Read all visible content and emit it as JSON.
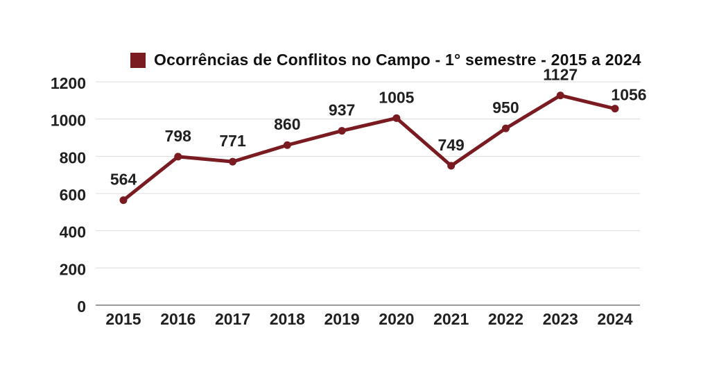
{
  "legend": {
    "label": "Ocorrências de Conflitos no Campo - 1° semestre - 2015 a 2024",
    "swatch_color": "#7a1a21"
  },
  "chart_data": {
    "type": "line",
    "title": "Ocorrências de Conflitos no Campo - 1° semestre - 2015 a 2024",
    "categories": [
      "2015",
      "2016",
      "2017",
      "2018",
      "2019",
      "2020",
      "2021",
      "2022",
      "2023",
      "2024"
    ],
    "series": [
      {
        "name": "Ocorrências de Conflitos no Campo - 1° semestre - 2015 a 2024",
        "color": "#7a1a21",
        "values": [
          564,
          798,
          771,
          860,
          937,
          1005,
          749,
          950,
          1127,
          1056
        ]
      }
    ],
    "xlabel": "",
    "ylabel": "",
    "ylim": [
      0,
      1200
    ],
    "ytick_interval": 200,
    "ytick_labels": [
      "0",
      "200",
      "400",
      "600",
      "800",
      "1000",
      "1200"
    ],
    "grid": true,
    "data_labels": true,
    "legend_position": "top",
    "colors": {
      "series": "#7a1a21",
      "gridline": "#dcdcdc",
      "axis_line": "#9a9a9a",
      "text": "#202020",
      "background": "#ffffff"
    }
  }
}
